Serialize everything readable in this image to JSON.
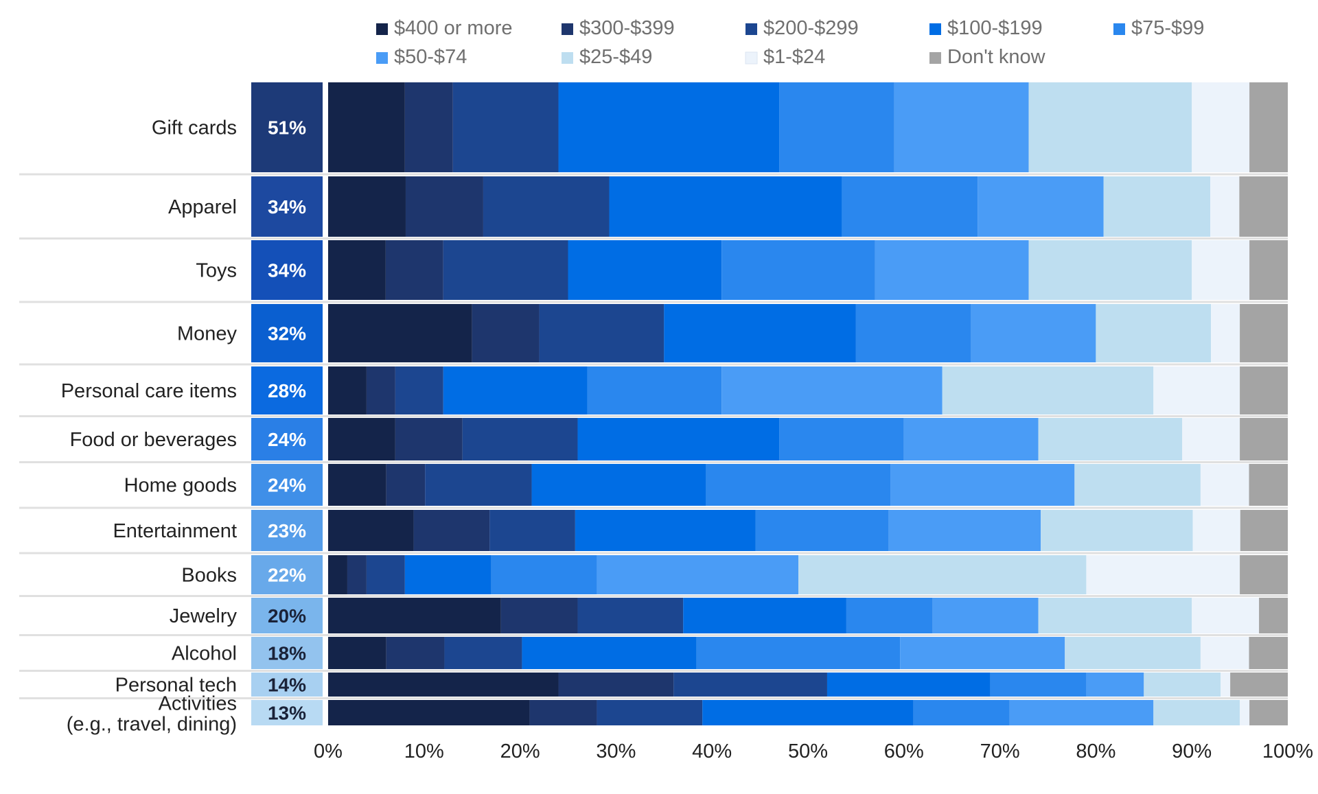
{
  "chart_data": {
    "type": "bar",
    "orientation": "horizontal",
    "stacked": true,
    "categories": [
      "Gift cards",
      "Apparel",
      "Toys",
      "Money",
      "Personal care items",
      "Food or beverages",
      "Home goods",
      "Entertainment",
      "Books",
      "Jewelry",
      "Alcohol",
      "Personal tech",
      "Activities|(e.g., travel, dining)"
    ],
    "category_share": [
      "51%",
      "34%",
      "34%",
      "32%",
      "28%",
      "24%",
      "24%",
      "23%",
      "22%",
      "20%",
      "18%",
      "14%",
      "13%"
    ],
    "share_colors": [
      "#1d3a78",
      "#1d49a0",
      "#1450b8",
      "#0a5fd0",
      "#0b6ae0",
      "#2a7fe6",
      "#3f8fe8",
      "#559de9",
      "#68a9ea",
      "#7ab5ec",
      "#93c3ee",
      "#a8d0f1",
      "#b8daf3"
    ],
    "share_text_colors": [
      "#ffffff",
      "#ffffff",
      "#ffffff",
      "#ffffff",
      "#ffffff",
      "#ffffff",
      "#ffffff",
      "#ffffff",
      "#ffffff",
      "#1a2238",
      "#1a2238",
      "#1a2238",
      "#1a2238"
    ],
    "series": [
      {
        "name": "$400 or more",
        "color": "#14244a",
        "values": [
          8,
          8,
          6,
          15,
          4,
          7,
          6,
          9,
          2,
          18,
          6,
          24,
          21
        ]
      },
      {
        "name": "$300-$399",
        "color": "#1e366d",
        "values": [
          5,
          8,
          6,
          7,
          3,
          7,
          4,
          8,
          2,
          8,
          6,
          12,
          7
        ]
      },
      {
        "name": "$200-$299",
        "color": "#1c4690",
        "values": [
          11,
          13,
          13,
          13,
          5,
          12,
          11,
          9,
          4,
          11,
          8,
          16,
          11
        ]
      },
      {
        "name": "$100-$199",
        "color": "#006de4",
        "values": [
          23,
          24,
          16,
          20,
          15,
          21,
          18,
          19,
          9,
          17,
          18,
          17,
          22
        ]
      },
      {
        "name": "$75-$99",
        "color": "#2a87ee",
        "values": [
          12,
          14,
          16,
          12,
          14,
          13,
          19,
          14,
          11,
          9,
          21,
          10,
          10
        ]
      },
      {
        "name": "$50-$74",
        "color": "#4a9cf6",
        "values": [
          14,
          13,
          16,
          13,
          23,
          14,
          19,
          16,
          21,
          11,
          17,
          6,
          15
        ]
      },
      {
        "name": "$25-$49",
        "color": "#bedef0",
        "values": [
          17,
          11,
          17,
          12,
          22,
          15,
          13,
          16,
          30,
          16,
          14,
          8,
          9
        ]
      },
      {
        "name": "$1-$24",
        "color": "#ecf3fb",
        "values": [
          6,
          3,
          6,
          3,
          9,
          6,
          5,
          5,
          16,
          7,
          5,
          1,
          1
        ]
      },
      {
        "name": "Don't know",
        "color": "#a4a4a4",
        "values": [
          4,
          5,
          4,
          5,
          5,
          5,
          4,
          5,
          5,
          3,
          4,
          6,
          4
        ]
      }
    ],
    "xlim": [
      0,
      100
    ],
    "xticks": [
      "0%",
      "10%",
      "20%",
      "30%",
      "40%",
      "50%",
      "60%",
      "70%",
      "80%",
      "90%",
      "100%"
    ],
    "grid": false,
    "legend": "top"
  }
}
